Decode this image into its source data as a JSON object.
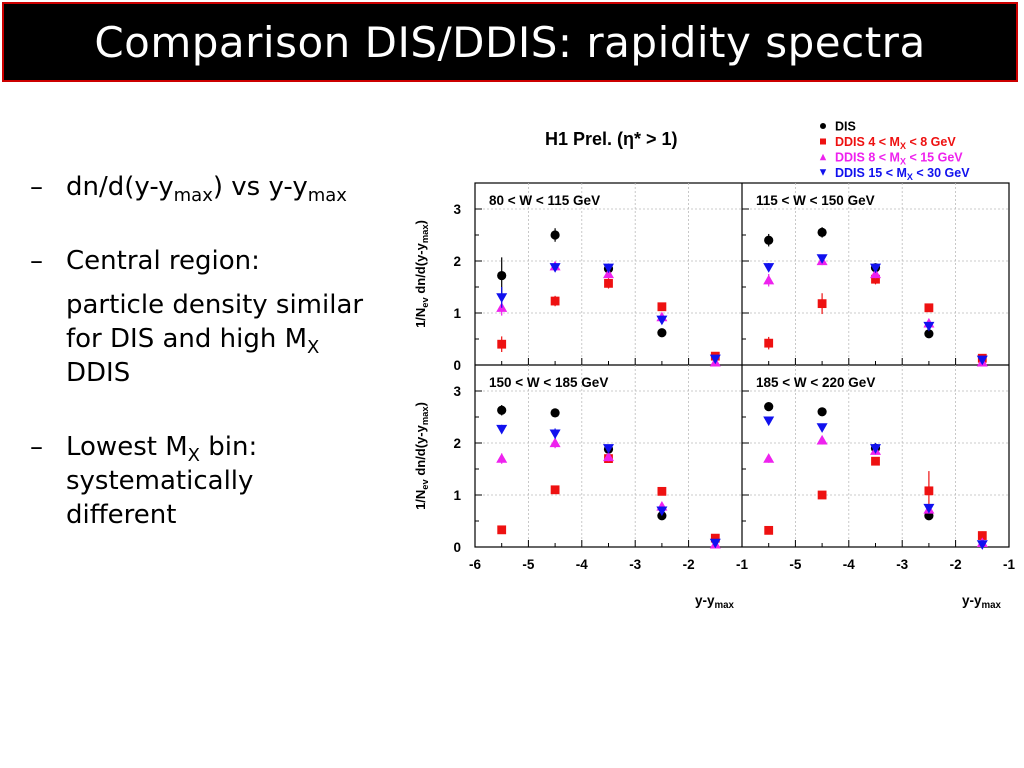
{
  "slide": {
    "title": "Comparison DIS/DDIS: rapidity spectra",
    "bullets": [
      {
        "dash": "–",
        "pre": "dn/d(y-y",
        "sub": "max",
        "post": ") vs  y-y",
        "sub2": "max"
      },
      {
        "dash": "–",
        "text": "Central region:",
        "cont_pre": "particle density similar for DIS and high M",
        "cont_sub": "X",
        "cont_post": " DDIS"
      },
      {
        "dash": "–",
        "pre": "Lowest M",
        "sub": "X",
        "post": " bin: systematically different"
      }
    ]
  },
  "chart_data": {
    "type": "scatter",
    "title": "H1 Prel. (η* > 1)",
    "ylabel_main": "1/N",
    "ylabel_sub": "ev",
    "ylabel_rest": " dn/d(y-y",
    "ylabel_sub2": "max",
    "ylabel_end": ")",
    "xlabel_main": "y-y",
    "xlabel_sub": "max",
    "xlim": [
      -6,
      -1
    ],
    "ylim": [
      0,
      3.5
    ],
    "xticks": [
      "-6",
      "-5",
      "-4",
      "-3",
      "-2",
      "-1"
    ],
    "xticks_right": [
      "-5",
      "-4",
      "-3",
      "-2",
      "-1"
    ],
    "yticks": [
      "0",
      "1",
      "2",
      "3"
    ],
    "legend": [
      {
        "marker": "circle",
        "color": "#000000",
        "label": "DIS"
      },
      {
        "marker": "square",
        "color": "#ee1111",
        "label": "DDIS  4 < M",
        "sub": "X",
        "post": " < 8 GeV"
      },
      {
        "marker": "triangle-up",
        "color": "#ee22ee",
        "label": "DDIS  8 < M",
        "sub": "X",
        "post": " < 15 GeV"
      },
      {
        "marker": "triangle-down",
        "color": "#1111ee",
        "label": "DDIS 15 < M",
        "sub": "X",
        "post": " < 30 GeV"
      }
    ],
    "x": [
      -5.5,
      -4.5,
      -3.5,
      -2.5,
      -1.5
    ],
    "panels": [
      {
        "label": "80 < W < 115 GeV",
        "series": [
          {
            "marker": "circle",
            "color": "#000000",
            "values": [
              1.72,
              2.5,
              1.85,
              0.62,
              null
            ],
            "errors": [
              0.35,
              0.13,
              0.1,
              0.05,
              null
            ]
          },
          {
            "marker": "square",
            "color": "#ee1111",
            "values": [
              0.4,
              1.23,
              1.57,
              1.12,
              0.17
            ],
            "errors": [
              0.15,
              0.1,
              0.1,
              0.08,
              0.03
            ]
          },
          {
            "marker": "triangle-up",
            "color": "#ee22ee",
            "values": [
              1.1,
              1.9,
              1.75,
              0.92,
              0.05
            ],
            "errors": [
              0.15,
              0.08,
              0.08,
              0.06,
              0.02
            ]
          },
          {
            "marker": "triangle-down",
            "color": "#1111ee",
            "values": [
              1.3,
              1.88,
              1.87,
              0.87,
              0.12
            ],
            "errors": [
              0.2,
              0.08,
              0.08,
              0.06,
              0.02
            ]
          }
        ]
      },
      {
        "label": "115 < W < 150 GeV",
        "series": [
          {
            "marker": "circle",
            "color": "#000000",
            "values": [
              2.4,
              2.55,
              1.87,
              0.6,
              null
            ],
            "errors": [
              0.12,
              0.1,
              0.07,
              0.05,
              null
            ]
          },
          {
            "marker": "square",
            "color": "#ee1111",
            "values": [
              0.42,
              1.18,
              1.65,
              1.1,
              0.13
            ],
            "errors": [
              0.12,
              0.2,
              0.1,
              0.06,
              0.03
            ]
          },
          {
            "marker": "triangle-up",
            "color": "#ee22ee",
            "values": [
              1.63,
              2.0,
              1.75,
              0.8,
              0.05
            ],
            "errors": [
              0.12,
              0.08,
              0.08,
              0.06,
              0.02
            ]
          },
          {
            "marker": "triangle-down",
            "color": "#1111ee",
            "values": [
              1.88,
              2.05,
              1.87,
              0.75,
              0.1
            ],
            "errors": [
              0.08,
              0.06,
              0.06,
              0.05,
              0.02
            ]
          }
        ]
      },
      {
        "label": "150 < W < 185 GeV",
        "series": [
          {
            "marker": "circle",
            "color": "#000000",
            "values": [
              2.63,
              2.58,
              1.88,
              0.6,
              null
            ],
            "errors": [
              0.1,
              0.08,
              0.06,
              0.05,
              null
            ]
          },
          {
            "marker": "square",
            "color": "#ee1111",
            "values": [
              0.33,
              1.1,
              1.7,
              1.07,
              0.17
            ],
            "errors": [
              0.05,
              0.08,
              0.08,
              0.06,
              0.03
            ]
          },
          {
            "marker": "triangle-up",
            "color": "#ee22ee",
            "values": [
              1.7,
              2.0,
              1.73,
              0.78,
              0.05
            ],
            "errors": [
              0.1,
              0.1,
              0.08,
              0.06,
              0.02
            ]
          },
          {
            "marker": "triangle-down",
            "color": "#1111ee",
            "values": [
              2.27,
              2.18,
              1.9,
              0.7,
              0.08
            ],
            "errors": [
              0.08,
              0.1,
              0.06,
              0.05,
              0.02
            ]
          }
        ]
      },
      {
        "label": "185 < W < 220 GeV",
        "series": [
          {
            "marker": "circle",
            "color": "#000000",
            "values": [
              2.7,
              2.6,
              1.9,
              0.6,
              null
            ],
            "errors": [
              0.06,
              0.06,
              0.06,
              0.05,
              null
            ]
          },
          {
            "marker": "square",
            "color": "#ee1111",
            "values": [
              0.32,
              1.0,
              1.65,
              1.08,
              0.22
            ],
            "errors": [
              0.05,
              0.06,
              0.06,
              0.38,
              0.08
            ]
          },
          {
            "marker": "triangle-up",
            "color": "#ee22ee",
            "values": [
              1.7,
              2.05,
              1.85,
              0.72,
              0.08
            ],
            "errors": [
              0.08,
              0.08,
              0.08,
              0.06,
              0.02
            ]
          },
          {
            "marker": "triangle-down",
            "color": "#1111ee",
            "values": [
              2.43,
              2.3,
              1.9,
              0.75,
              0.05
            ],
            "errors": [
              0.06,
              0.06,
              0.1,
              0.06,
              0.02
            ]
          }
        ]
      }
    ]
  }
}
